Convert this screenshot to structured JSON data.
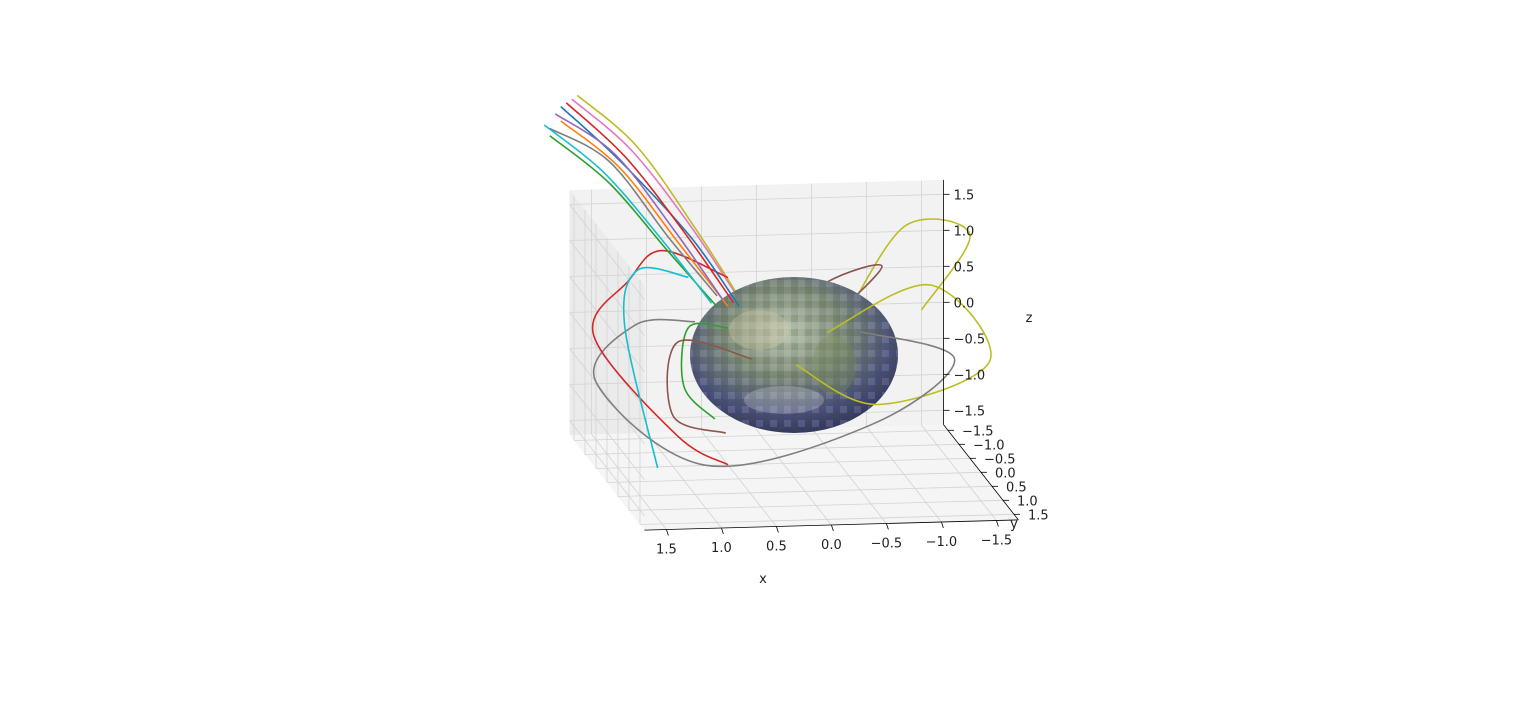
{
  "chart_data": {
    "type": "3d-line",
    "title": "",
    "xlabel": "x",
    "ylabel": "y",
    "zlabel": "z",
    "xlim": [
      -1.7,
      1.7
    ],
    "ylim": [
      -1.7,
      1.7
    ],
    "zlim": [
      -1.7,
      1.7
    ],
    "grid": true,
    "x_ticks": [
      "1.5",
      "1.0",
      "0.5",
      "0.0",
      "−0.5",
      "−1.0",
      "−1.5"
    ],
    "y_ticks": [
      "−1.5",
      "−1.0",
      "−0.5",
      "0.0",
      "0.5",
      "1.0",
      "1.5"
    ],
    "z_ticks": [
      "1.5",
      "1.0",
      "0.5",
      "0.0",
      "−0.5",
      "−1.0",
      "−1.5"
    ],
    "surface": {
      "shape": "sphere",
      "radius": 1.0,
      "texture": "earth"
    },
    "series_colors": [
      "#1f77b4",
      "#ff7f0e",
      "#2ca02c",
      "#d62728",
      "#9467bd",
      "#8c564b",
      "#e377c2",
      "#7f7f7f",
      "#bcbd22",
      "#17becf"
    ],
    "series": [
      {
        "color": "#bcbd22",
        "points": [
          [
            -1.2,
            -0.2,
            0.5
          ],
          [
            -1.6,
            0,
            1.6
          ],
          [
            -1.0,
            0.1,
            1.8
          ],
          [
            -0.5,
            0,
            0.6
          ]
        ]
      },
      {
        "color": "#bcbd22",
        "points": [
          [
            -0.3,
            0,
            0.3
          ],
          [
            -1.2,
            0.2,
            1.0
          ],
          [
            -1.7,
            0.4,
            0.0
          ],
          [
            -0.7,
            0.3,
            -0.6
          ],
          [
            0,
            0.1,
            -0.1
          ]
        ]
      },
      {
        "color": "#8c564b",
        "points": [
          [
            -0.4,
            -0.1,
            0.5
          ],
          [
            -0.8,
            0,
            1.2
          ],
          [
            -0.3,
            0,
            1.0
          ],
          [
            0.2,
            0,
            0.4
          ]
        ]
      },
      {
        "color": "#7f7f7f",
        "points": [
          [
            -0.6,
            0,
            0.3
          ],
          [
            -1.4,
            0.3,
            0.0
          ],
          [
            -0.6,
            0.5,
            -0.8
          ],
          [
            0.9,
            0.5,
            -1.3
          ],
          [
            1.8,
            0,
            -0.3
          ],
          [
            1.4,
            -0.2,
            0.4
          ],
          [
            0.9,
            0,
            0.5
          ]
        ]
      },
      {
        "color": "#d62728",
        "points": [
          [
            0.6,
            0,
            1.1
          ],
          [
            1.2,
            0,
            1.5
          ],
          [
            1.5,
            0,
            1.1
          ],
          [
            1.9,
            0.4,
            0.5
          ],
          [
            1.2,
            0.7,
            -0.8
          ],
          [
            0.7,
            0.5,
            -1.3
          ]
        ]
      },
      {
        "color": "#17becf",
        "points": [
          [
            0.9,
            -0.3,
            1.0
          ],
          [
            1.4,
            -0.1,
            1.2
          ],
          [
            1.6,
            0.3,
            0.6
          ],
          [
            1.4,
            0.8,
            -1.2
          ]
        ]
      },
      {
        "color": "#2ca02c",
        "points": [
          [
            0.6,
            0,
            0.4
          ],
          [
            1.0,
            0.2,
            0.5
          ],
          [
            1.1,
            0.5,
            -0.2
          ],
          [
            0.8,
            0.4,
            -0.7
          ]
        ]
      },
      {
        "color": "#8c564b",
        "points": [
          [
            0.4,
            0.1,
            0.0
          ],
          [
            1.1,
            0.2,
            0.3
          ],
          [
            1.2,
            0.5,
            -0.6
          ],
          [
            0.7,
            0.4,
            -0.9
          ]
        ]
      },
      {
        "color": "#1f77b4",
        "points": [
          [
            0.5,
            0,
            0.7
          ],
          [
            0.9,
            -0.2,
            1.6
          ],
          [
            1.5,
            -0.4,
            2.6
          ],
          [
            2.0,
            -0.6,
            3.3
          ]
        ]
      },
      {
        "color": "#ff7f0e",
        "points": [
          [
            0.6,
            0,
            0.7
          ],
          [
            1.0,
            -0.2,
            1.5
          ],
          [
            1.5,
            -0.4,
            2.5
          ],
          [
            2.0,
            -0.6,
            3.1
          ]
        ]
      },
      {
        "color": "#2ca02c",
        "points": [
          [
            0.7,
            0,
            0.7
          ],
          [
            1.1,
            -0.2,
            1.4
          ],
          [
            1.6,
            -0.4,
            2.3
          ],
          [
            2.1,
            -0.6,
            2.9
          ]
        ]
      },
      {
        "color": "#d62728",
        "points": [
          [
            0.55,
            0,
            0.75
          ],
          [
            0.95,
            -0.2,
            1.65
          ],
          [
            1.45,
            -0.4,
            2.65
          ],
          [
            1.95,
            -0.6,
            3.35
          ]
        ]
      },
      {
        "color": "#9467bd",
        "points": [
          [
            0.65,
            0,
            0.8
          ],
          [
            1.05,
            -0.2,
            1.7
          ],
          [
            1.55,
            -0.4,
            2.7
          ],
          [
            2.05,
            -0.6,
            3.2
          ]
        ]
      },
      {
        "color": "#e377c2",
        "points": [
          [
            0.5,
            0,
            0.8
          ],
          [
            0.9,
            -0.2,
            1.75
          ],
          [
            1.4,
            -0.4,
            2.75
          ],
          [
            1.9,
            -0.6,
            3.4
          ]
        ]
      },
      {
        "color": "#7f7f7f",
        "points": [
          [
            0.7,
            0,
            0.85
          ],
          [
            1.1,
            -0.2,
            1.6
          ],
          [
            1.6,
            -0.4,
            2.6
          ],
          [
            2.1,
            -0.6,
            3.0
          ]
        ]
      },
      {
        "color": "#bcbd22",
        "points": [
          [
            0.45,
            0,
            0.7
          ],
          [
            0.85,
            -0.2,
            1.7
          ],
          [
            1.35,
            -0.4,
            2.8
          ],
          [
            1.85,
            -0.6,
            3.45
          ]
        ]
      },
      {
        "color": "#17becf",
        "points": [
          [
            0.75,
            0,
            0.75
          ],
          [
            1.15,
            -0.2,
            1.55
          ],
          [
            1.65,
            -0.4,
            2.45
          ],
          [
            2.15,
            -0.6,
            3.05
          ]
        ]
      }
    ]
  }
}
